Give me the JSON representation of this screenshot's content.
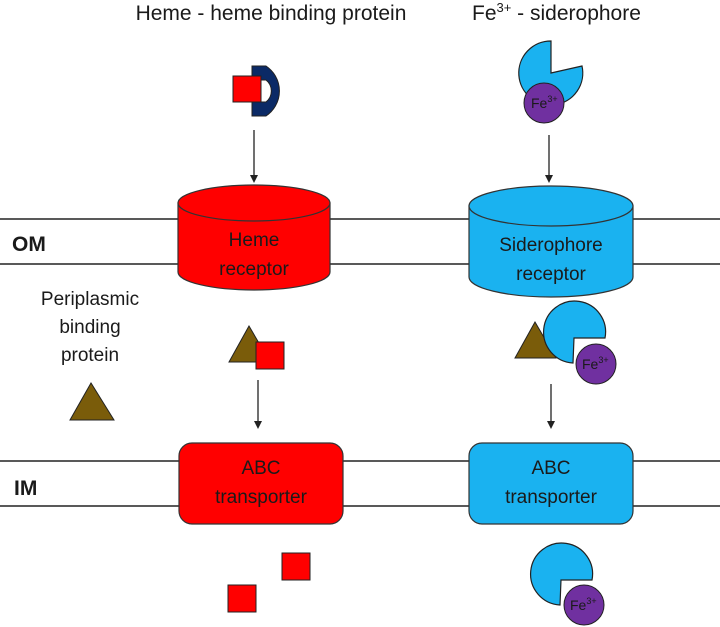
{
  "title_heme": "Heme - heme binding protein",
  "title_fe": {
    "base": "Fe",
    "sup": "3+",
    "rest": " - siderophore"
  },
  "membranes": {
    "om": "OM",
    "im": "IM"
  },
  "periplasmic": [
    "Periplasmic",
    "binding",
    "protein"
  ],
  "heme_receptor": [
    "Heme",
    "receptor"
  ],
  "siderophore_receptor": [
    "Siderophore",
    "receptor"
  ],
  "abc_left": [
    "ABC",
    "transporter"
  ],
  "abc_right": [
    "ABC",
    "transporter"
  ],
  "fe_label": {
    "base": "Fe",
    "sup": "3+"
  },
  "colors": {
    "heme_red": "#ff0000",
    "heme_protein_navy": "#0b2a66",
    "siderophore_blue": "#1ab2f0",
    "fe_purple": "#7030a0",
    "pbp_brown": "#7a5c0a",
    "line": "#222222"
  }
}
